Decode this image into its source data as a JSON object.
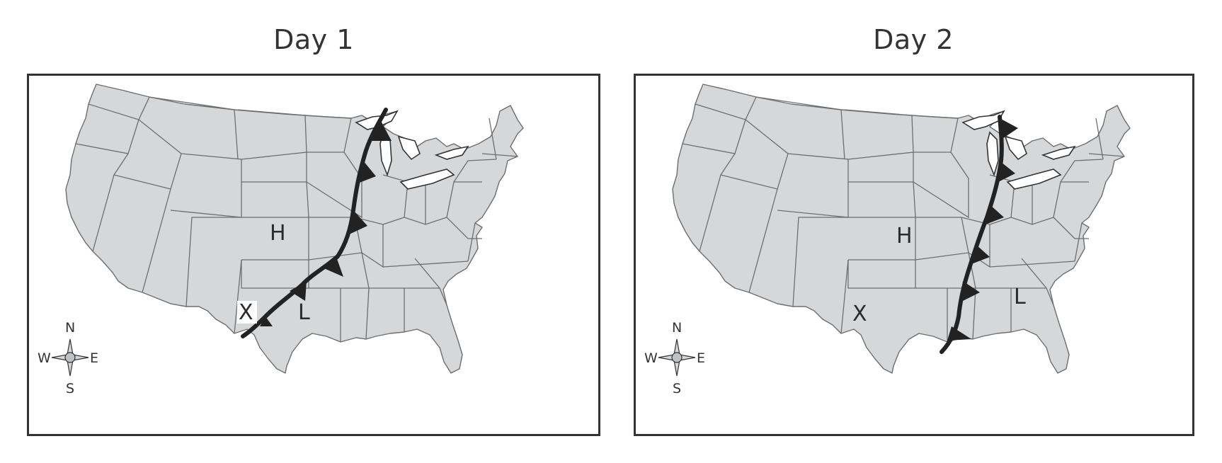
{
  "panels": [
    {
      "id": "day1",
      "title": "Day 1",
      "high_label": "H",
      "low_label": "L",
      "location_label": "X",
      "front_type": "cold-front",
      "compass": {
        "n": "N",
        "s": "S",
        "e": "E",
        "w": "W"
      }
    },
    {
      "id": "day2",
      "title": "Day 2",
      "high_label": "H",
      "low_label": "L",
      "location_label": "X",
      "front_type": "cold-front",
      "compass": {
        "n": "N",
        "s": "S",
        "e": "E",
        "w": "W"
      }
    }
  ],
  "colors": {
    "land": "#d6d7d9",
    "border": "#6e6e6e",
    "front": "#222222",
    "frame": "#333333"
  },
  "icons": [
    "compass-rose-icon",
    "cold-front-icon"
  ]
}
